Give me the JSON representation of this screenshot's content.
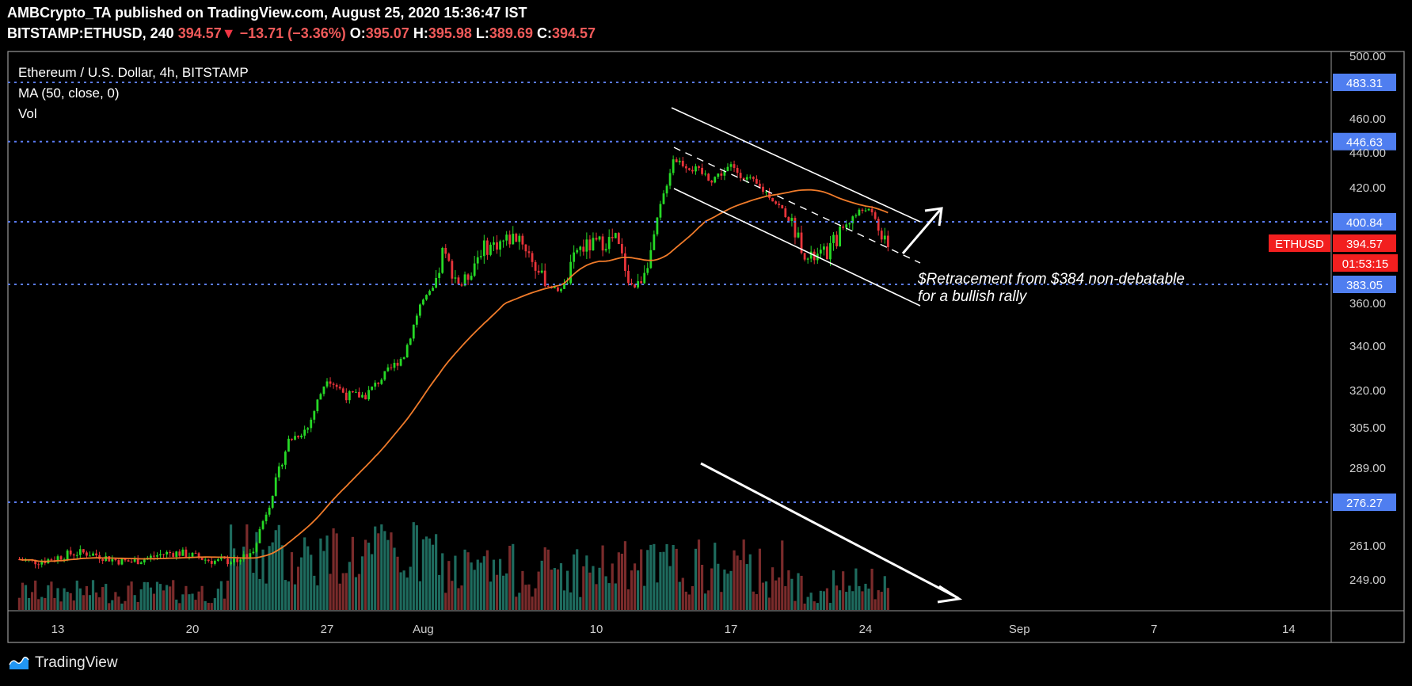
{
  "header": {
    "line1": "AMBCrypto_TA published on TradingView.com, August 25, 2020 15:36:47 IST",
    "symbol": "BITSTAMP:ETHUSD, 240",
    "last": "394.57",
    "change": "−13.71 (−3.36%)",
    "o_label": "O:",
    "o": "395.07",
    "h_label": "H:",
    "h": "395.98",
    "l_label": "L:",
    "l": "389.69",
    "c_label": "C:",
    "c": "394.57"
  },
  "legend": {
    "title": "Ethereum / U.S. Dollar, 4h, BITSTAMP",
    "ma": "MA (50, close, 0)",
    "vol": "Vol"
  },
  "footer": {
    "brand": "TradingView",
    "icon": "tradingview-logo-icon"
  },
  "colors": {
    "bull": "#26d826",
    "bear": "#e8343a",
    "ma": "#f07b2a",
    "level": "#5b7cf7",
    "price_tag": "#f21f1f",
    "level_tag": "#4f7ef0"
  },
  "chart_data": {
    "type": "candlestick",
    "title": "Ethereum / U.S. Dollar, 4h, BITSTAMP",
    "x_ticks": [
      "13",
      "20",
      "27",
      "Aug",
      "10",
      "17",
      "24",
      "Sep",
      "7",
      "14"
    ],
    "y_ticks": [
      "500.00",
      "460.00",
      "440.00",
      "420.00",
      "360.00",
      "340.00",
      "320.00",
      "305.00",
      "289.00",
      "261.00",
      "249.00"
    ],
    "ylim": [
      240,
      500
    ],
    "horizontal_levels": [
      {
        "value": 483.31,
        "label": "483.31"
      },
      {
        "value": 446.63,
        "label": "446.63"
      },
      {
        "value": 400.84,
        "label": "400.84"
      },
      {
        "value": 383.05,
        "label": "383.05"
      },
      {
        "value": 276.27,
        "label": "276.27"
      }
    ],
    "current_price": {
      "symbol": "ETHUSD",
      "value": 394.57,
      "label": "394.57",
      "countdown": "01:53:15"
    },
    "price_path": [
      {
        "x": "Jul 23",
        "y": 257
      },
      {
        "x": "Jul 24",
        "y": 276
      },
      {
        "x": "Jul 25",
        "y": 300
      },
      {
        "x": "Jul 26",
        "y": 305
      },
      {
        "x": "Jul 27",
        "y": 326
      },
      {
        "x": "Jul 28",
        "y": 318
      },
      {
        "x": "Jul 29",
        "y": 318
      },
      {
        "x": "Jul 31",
        "y": 336
      },
      {
        "x": "Aug 2",
        "y": 392
      },
      {
        "x": "Aug 3",
        "y": 382
      },
      {
        "x": "Aug 4",
        "y": 393
      },
      {
        "x": "Aug 6",
        "y": 397
      },
      {
        "x": "Aug 8",
        "y": 376
      },
      {
        "x": "Aug 9",
        "y": 393
      },
      {
        "x": "Aug 11",
        "y": 396
      },
      {
        "x": "Aug 12",
        "y": 380
      },
      {
        "x": "Aug 13",
        "y": 395
      },
      {
        "x": "Aug 14",
        "y": 437
      },
      {
        "x": "Aug 16",
        "y": 425
      },
      {
        "x": "Aug 17",
        "y": 432
      },
      {
        "x": "Aug 19",
        "y": 416
      },
      {
        "x": "Aug 21",
        "y": 390
      },
      {
        "x": "Aug 22",
        "y": 392
      },
      {
        "x": "Aug 24",
        "y": 409
      },
      {
        "x": "Aug 25",
        "y": 394.57
      }
    ],
    "series": [
      {
        "name": "MA (50, close, 0)"
      },
      {
        "name": "Vol"
      }
    ],
    "annotations": {
      "note_line1": "$Retracement from $384 non-debatable",
      "note_line2": "for a bullish rally"
    }
  }
}
